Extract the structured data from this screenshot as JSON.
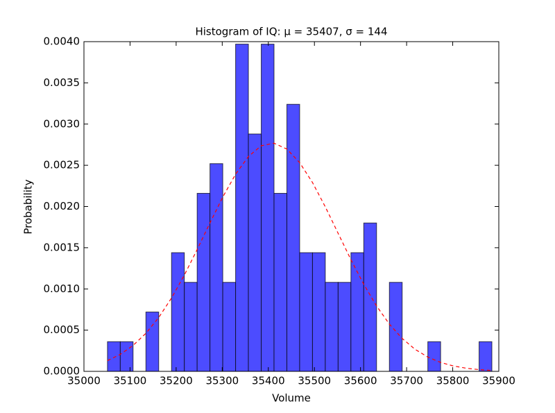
{
  "chart_data": {
    "type": "histogram",
    "title": "Histogram of IQ: μ = 35407, σ = 144",
    "xlabel": "Volume",
    "ylabel": "Probability",
    "bins": [
      35051,
      35078.8,
      35106.6,
      35134.4,
      35162.2,
      35190,
      35217.8,
      35245.6,
      35273.4,
      35301.2,
      35329,
      35356.8,
      35384.6,
      35412.4,
      35440.2,
      35468,
      35495.8,
      35523.6,
      35551.4,
      35579.2,
      35607,
      35634.8,
      35662.6,
      35690.4,
      35718.2,
      35746,
      35773.8,
      35801.6,
      35829.4,
      35857.2,
      35885
    ],
    "values": [
      0.00036,
      0.00036,
      0,
      0.00072,
      0,
      0.00144,
      0.00108,
      0.00216,
      0.00252,
      0.00108,
      0.00397,
      0.00288,
      0.00397,
      0.00216,
      0.00324,
      0.00144,
      0.00144,
      0.00108,
      0.00108,
      0.00144,
      0.0018,
      0,
      0.00108,
      0,
      0,
      0.00036,
      0,
      0,
      0,
      0.00036
    ],
    "color": "#4c4cff",
    "line": {
      "type": "line",
      "color": "#ff0000",
      "dashed": true,
      "x": [
        35051,
        35078.8,
        35106.6,
        35134.4,
        35162.2,
        35190,
        35217.8,
        35245.6,
        35273.4,
        35301.2,
        35329,
        35356.8,
        35384.6,
        35412.4,
        35440.2,
        35468,
        35495.8,
        35523.6,
        35551.4,
        35579.2,
        35607,
        35634.8,
        35662.6,
        35690.4,
        35718.2,
        35746,
        35773.8,
        35801.6,
        35829.4,
        35857.2,
        35885
      ],
      "values": [
        0.00013,
        0.000206,
        0.000314,
        0.000462,
        0.000653,
        0.00089,
        0.001168,
        0.001478,
        0.001801,
        0.002115,
        0.002392,
        0.002607,
        0.002737,
        0.002768,
        0.002697,
        0.002532,
        0.002291,
        0.001996,
        0.001675,
        0.001355,
        0.001056,
        0.000793,
        0.000573,
        0.000399,
        0.000268,
        0.000173,
        0.000108,
        6.5e-05,
        3.8e-05,
        2.1e-05,
        1.1e-05
      ]
    },
    "xlim": [
      35000,
      35900
    ],
    "xticks": [
      35000,
      35100,
      35200,
      35300,
      35400,
      35500,
      35600,
      35700,
      35800,
      35900
    ],
    "ylim": [
      0,
      0.004
    ],
    "yticks": [
      {
        "value": 0,
        "label": "0.0000"
      },
      {
        "value": 0.0005,
        "label": "0.0005"
      },
      {
        "value": 0.001,
        "label": "0.0010"
      },
      {
        "value": 0.0015,
        "label": "0.0015"
      },
      {
        "value": 0.002,
        "label": "0.0020"
      },
      {
        "value": 0.0025,
        "label": "0.0025"
      },
      {
        "value": 0.003,
        "label": "0.0030"
      },
      {
        "value": 0.0035,
        "label": "0.0035"
      },
      {
        "value": 0.004,
        "label": "0.0040"
      }
    ],
    "grid": false
  }
}
